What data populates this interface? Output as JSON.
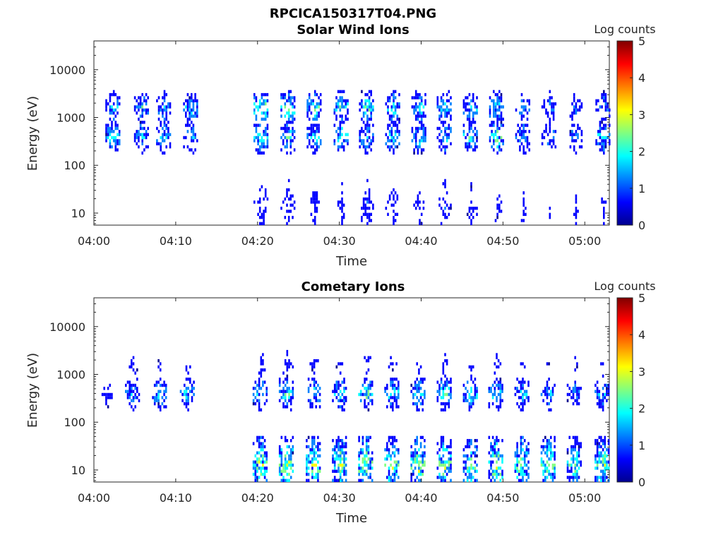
{
  "figure": {
    "title": "RPCICA150317T04.PNG"
  },
  "colormap": [
    "#00008f",
    "#0000ff",
    "#0080ff",
    "#00ffff",
    "#80ff80",
    "#ffff00",
    "#ff8000",
    "#ff0000",
    "#800000"
  ],
  "chart_data": [
    {
      "type": "heatmap",
      "title": "Solar Wind Ions",
      "xlabel": "Time",
      "ylabel": "Energy (eV)",
      "colorbar_label": "Log counts",
      "yscale": "log",
      "ylim": [
        5.6,
        40000
      ],
      "xlim_minutes": [
        0,
        63
      ],
      "xticks": [
        "04:00",
        "04:10",
        "04:20",
        "04:30",
        "04:40",
        "04:50",
        "05:00"
      ],
      "yticks": [
        "10",
        "100",
        "1000",
        "10000"
      ],
      "colorbar_ticks": [
        "0",
        "1",
        "2",
        "3",
        "4",
        "5"
      ],
      "clim": [
        0,
        5
      ],
      "time_blocks": [
        {
          "t": 2.3,
          "hi": 1.5,
          "mid": 1.7,
          "low": 0
        },
        {
          "t": 5.8,
          "hi": 1.6,
          "mid": 1.5,
          "low": 0
        },
        {
          "t": 8.5,
          "hi": 1.4,
          "mid": 1.6,
          "low": 0
        },
        {
          "t": 11.8,
          "hi": 1.6,
          "mid": 1.5,
          "low": 0
        },
        {
          "t": 20.4,
          "hi": 2.2,
          "mid": 1.9,
          "low": 0.9
        },
        {
          "t": 23.7,
          "hi": 2.1,
          "mid": 1.8,
          "low": 0.8
        },
        {
          "t": 26.9,
          "hi": 2.0,
          "mid": 1.7,
          "low": 0.7
        },
        {
          "t": 30.2,
          "hi": 1.9,
          "mid": 1.8,
          "low": 0.6
        },
        {
          "t": 33.3,
          "hi": 1.9,
          "mid": 1.6,
          "low": 0.9
        },
        {
          "t": 36.5,
          "hi": 1.8,
          "mid": 1.7,
          "low": 0.8
        },
        {
          "t": 39.7,
          "hi": 1.7,
          "mid": 1.9,
          "low": 0.7
        },
        {
          "t": 42.8,
          "hi": 1.6,
          "mid": 1.6,
          "low": 0.8
        },
        {
          "t": 46.0,
          "hi": 1.7,
          "mid": 1.8,
          "low": 0.7
        },
        {
          "t": 49.2,
          "hi": 1.8,
          "mid": 2.1,
          "low": 0.6
        },
        {
          "t": 52.4,
          "hi": 1.2,
          "mid": 1.6,
          "low": 0.5
        },
        {
          "t": 55.6,
          "hi": 1.1,
          "mid": 1.3,
          "low": 0.4
        },
        {
          "t": 58.8,
          "hi": 1.0,
          "mid": 1.2,
          "low": 0.4
        },
        {
          "t": 62.2,
          "hi": 1.2,
          "mid": 1.7,
          "low": 0.5
        }
      ]
    },
    {
      "type": "heatmap",
      "title": "Cometary Ions",
      "xlabel": "Time",
      "ylabel": "Energy (eV)",
      "colorbar_label": "Log counts",
      "yscale": "log",
      "ylim": [
        5.6,
        40000
      ],
      "xlim_minutes": [
        0,
        63
      ],
      "xticks": [
        "04:00",
        "04:10",
        "04:20",
        "04:30",
        "04:40",
        "04:50",
        "05:00"
      ],
      "yticks": [
        "10",
        "100",
        "1000",
        "10000"
      ],
      "colorbar_ticks": [
        "0",
        "1",
        "2",
        "3",
        "4",
        "5"
      ],
      "clim": [
        0,
        5
      ],
      "time_blocks": [
        {
          "t": 1.6,
          "hi": 0,
          "mid": 0.8,
          "low": 0
        },
        {
          "t": 4.7,
          "hi": 0.6,
          "mid": 1.4,
          "low": 0
        },
        {
          "t": 8.0,
          "hi": 0.5,
          "mid": 1.6,
          "low": 0
        },
        {
          "t": 11.4,
          "hi": 0.5,
          "mid": 1.5,
          "low": 0
        },
        {
          "t": 20.3,
          "hi": 0.8,
          "mid": 1.7,
          "low": 2.2
        },
        {
          "t": 23.5,
          "hi": 0.7,
          "mid": 1.8,
          "low": 2.4
        },
        {
          "t": 26.8,
          "hi": 0.6,
          "mid": 1.6,
          "low": 2.3
        },
        {
          "t": 30.0,
          "hi": 0.5,
          "mid": 1.7,
          "low": 2.1
        },
        {
          "t": 33.2,
          "hi": 0.7,
          "mid": 1.9,
          "low": 2.4
        },
        {
          "t": 36.4,
          "hi": 0.6,
          "mid": 1.8,
          "low": 2.2
        },
        {
          "t": 39.6,
          "hi": 0.5,
          "mid": 1.7,
          "low": 2.3
        },
        {
          "t": 42.8,
          "hi": 0.6,
          "mid": 1.9,
          "low": 2.2
        },
        {
          "t": 46.0,
          "hi": 0.5,
          "mid": 1.8,
          "low": 2.1
        },
        {
          "t": 49.1,
          "hi": 0.7,
          "mid": 1.7,
          "low": 2.3
        },
        {
          "t": 52.3,
          "hi": 0.6,
          "mid": 1.5,
          "low": 2.1
        },
        {
          "t": 55.5,
          "hi": 0.4,
          "mid": 1.4,
          "low": 2.2
        },
        {
          "t": 58.7,
          "hi": 0.4,
          "mid": 1.3,
          "low": 2.0
        },
        {
          "t": 62.1,
          "hi": 0.5,
          "mid": 1.4,
          "low": 2.1
        }
      ]
    }
  ]
}
